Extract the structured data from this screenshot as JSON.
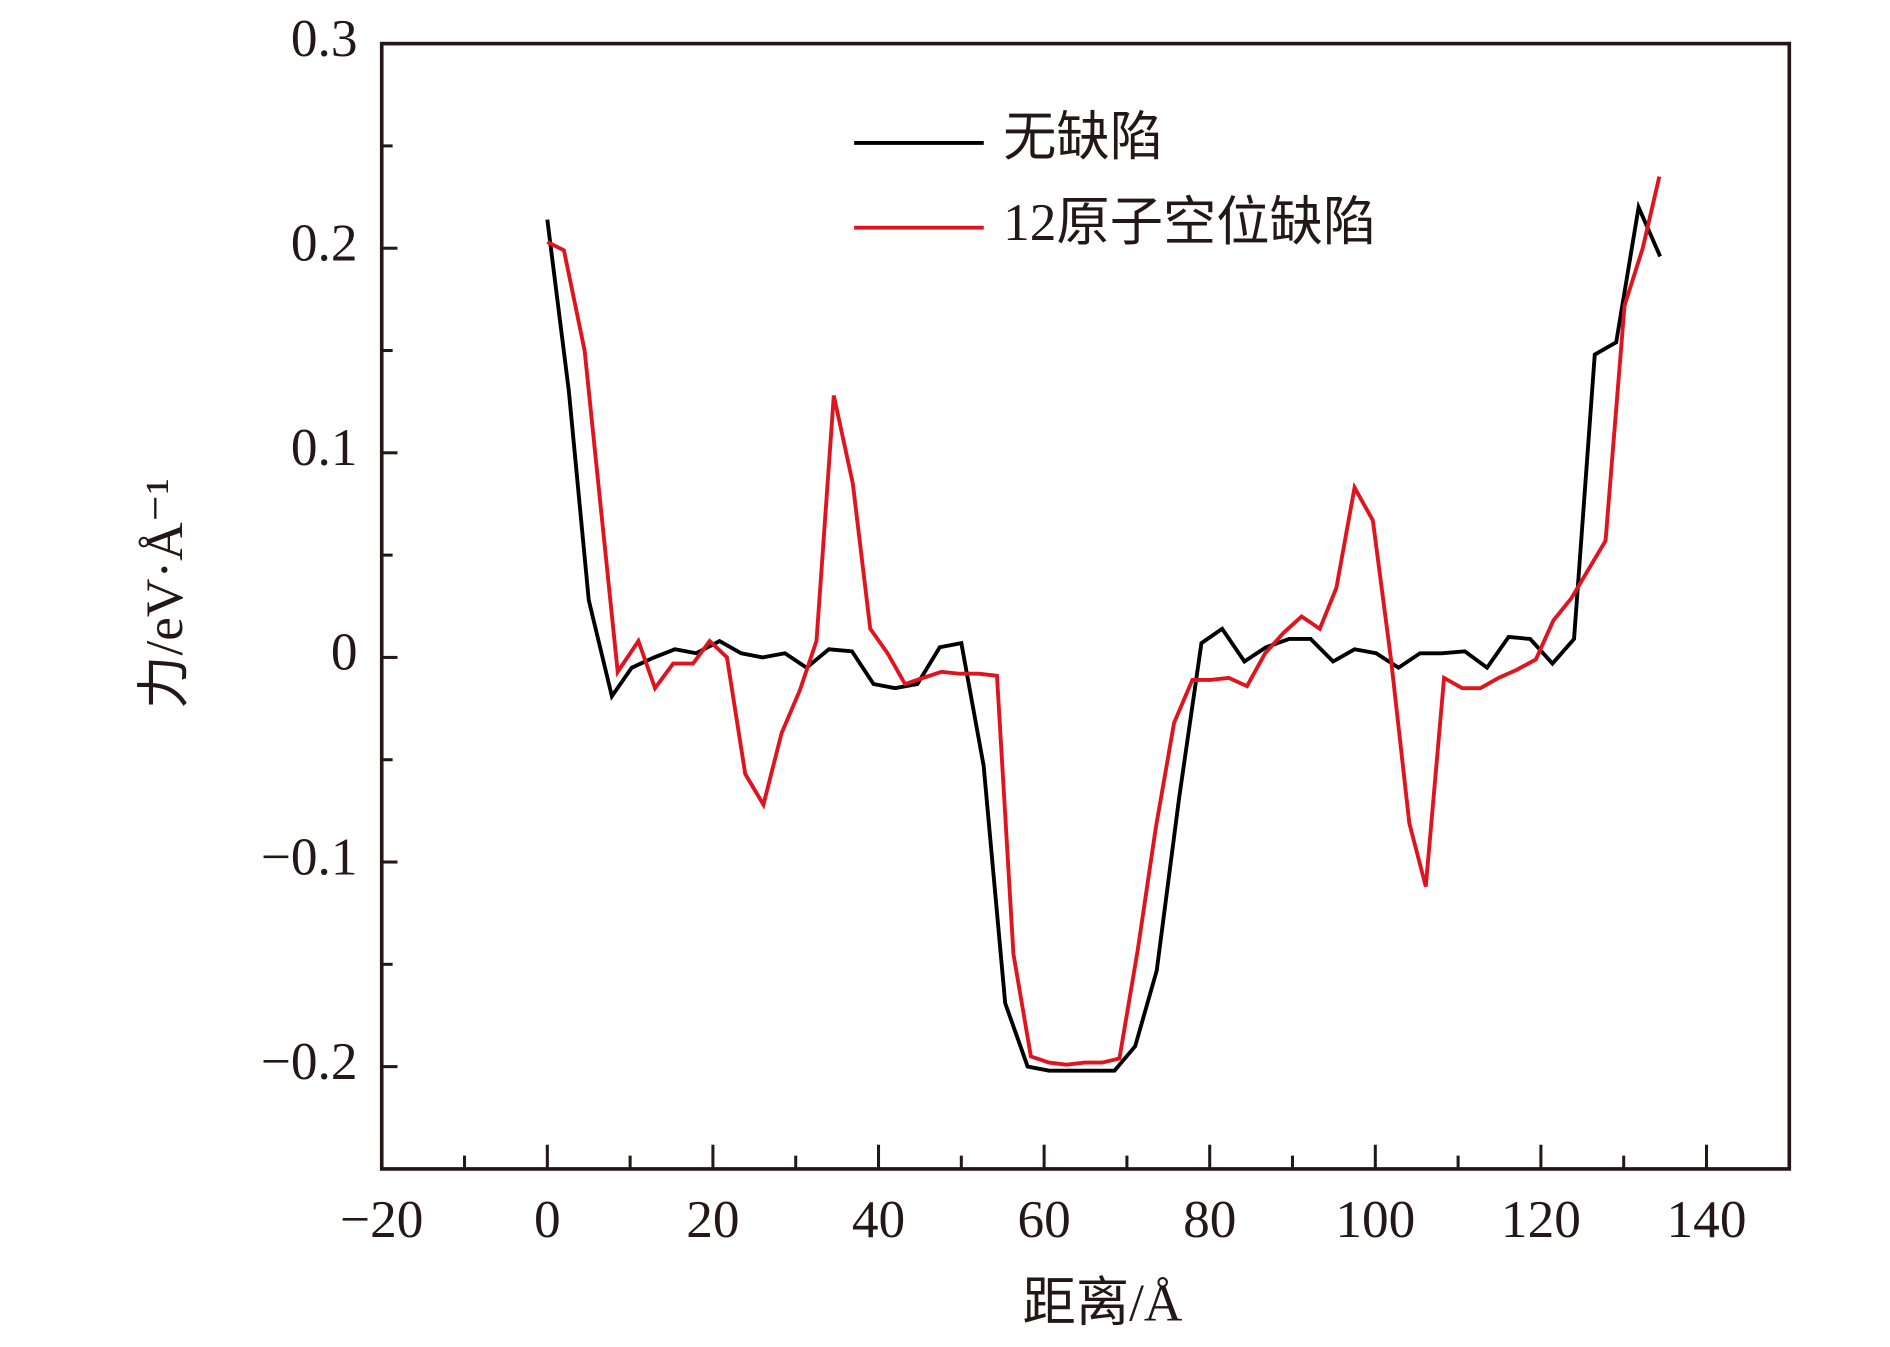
{
  "chart_data": {
    "type": "line",
    "xlabel": "距离/Å",
    "ylabel": "力/eV·Å⁻¹",
    "xlim": [
      -20,
      150
    ],
    "ylim": [
      -0.25,
      0.3
    ],
    "xticks": [
      {
        "value": -20,
        "label": "−20"
      },
      0,
      20,
      40,
      60,
      80,
      100,
      120,
      140
    ],
    "xminorticks": [
      -10,
      10,
      30,
      50,
      70,
      90,
      110,
      130
    ],
    "yticks": [
      {
        "value": -0.2,
        "label": "−0.2"
      },
      {
        "value": -0.1,
        "label": "−0.1"
      },
      0,
      0.1,
      0.2,
      0.3
    ],
    "yminorticks": [
      -0.25,
      -0.15,
      -0.05,
      0.05,
      0.15,
      0.25
    ],
    "legend": "upper center",
    "series": [
      {
        "name": "无缺陷",
        "color": "#000000",
        "x": [
          0,
          2.6,
          5,
          7.8,
          10.2,
          12.9,
          15.4,
          18,
          20.8,
          23.4,
          26,
          28.7,
          31.3,
          34,
          36.8,
          39.4,
          42,
          44.7,
          47.4,
          50,
          52.7,
          55.3,
          58,
          60.6,
          63.2,
          65.9,
          68.5,
          71,
          73.6,
          76.3,
          79,
          81.5,
          84.2,
          86.8,
          89.6,
          92.2,
          94.9,
          97.5,
          100.1,
          102.8,
          105.4,
          108,
          110.8,
          113.5,
          116.1,
          118.7,
          121.4,
          124,
          126.5,
          129.1,
          131.8,
          134.4
        ],
        "values": [
          0.214,
          0.13,
          0.028,
          -0.019,
          -0.005,
          0,
          0.004,
          0.002,
          0.008,
          0.002,
          0,
          0.002,
          -0.005,
          0.004,
          0.003,
          -0.013,
          -0.015,
          -0.013,
          0.005,
          0.007,
          -0.053,
          -0.169,
          -0.2,
          -0.202,
          -0.202,
          -0.202,
          -0.202,
          -0.19,
          -0.153,
          -0.069,
          0.007,
          0.014,
          -0.002,
          0.005,
          0.009,
          0.009,
          -0.002,
          0.004,
          0.002,
          -0.005,
          0.002,
          0.002,
          0.003,
          -0.005,
          0.01,
          0.009,
          -0.003,
          0.009,
          0.148,
          0.154,
          0.22,
          0.196
        ]
      },
      {
        "name": "12原子空位缺陷",
        "color": "#e0141e",
        "x": [
          0,
          2,
          4.5,
          8.5,
          11,
          13,
          15.2,
          17.6,
          19.6,
          21.7,
          23.9,
          26.1,
          28.3,
          30.5,
          32.5,
          34.6,
          36.9,
          39,
          41.1,
          43.2,
          45.4,
          47.6,
          49.8,
          52.1,
          54.3,
          56.3,
          58.4,
          60.6,
          62.7,
          64.9,
          67,
          69.1,
          71.3,
          73.5,
          75.7,
          77.9,
          80.1,
          82.3,
          84.5,
          86.7,
          88.9,
          91.1,
          93.3,
          95.3,
          97.5,
          99.7,
          101.9,
          104.1,
          106.1,
          108.3,
          110.5,
          112.7,
          114.9,
          117.1,
          119.4,
          121.5,
          123.7,
          127.8,
          130.1,
          132.3,
          134.3
        ],
        "values": [
          0.203,
          0.199,
          0.15,
          -0.007,
          0.008,
          -0.015,
          -0.003,
          -0.003,
          0.008,
          0,
          -0.057,
          -0.072,
          -0.037,
          -0.016,
          0.008,
          0.128,
          0.085,
          0.014,
          0.002,
          -0.013,
          -0.01,
          -0.007,
          -0.008,
          -0.008,
          -0.009,
          -0.145,
          -0.195,
          -0.198,
          -0.199,
          -0.198,
          -0.198,
          -0.196,
          -0.143,
          -0.083,
          -0.032,
          -0.011,
          -0.011,
          -0.01,
          -0.014,
          0.002,
          0.012,
          0.02,
          0.014,
          0.034,
          0.083,
          0.067,
          -0.001,
          -0.081,
          -0.112,
          -0.01,
          -0.015,
          -0.015,
          -0.01,
          -0.006,
          -0.001,
          0.018,
          0.029,
          0.057,
          0.172,
          0.2,
          0.235
        ]
      }
    ]
  }
}
